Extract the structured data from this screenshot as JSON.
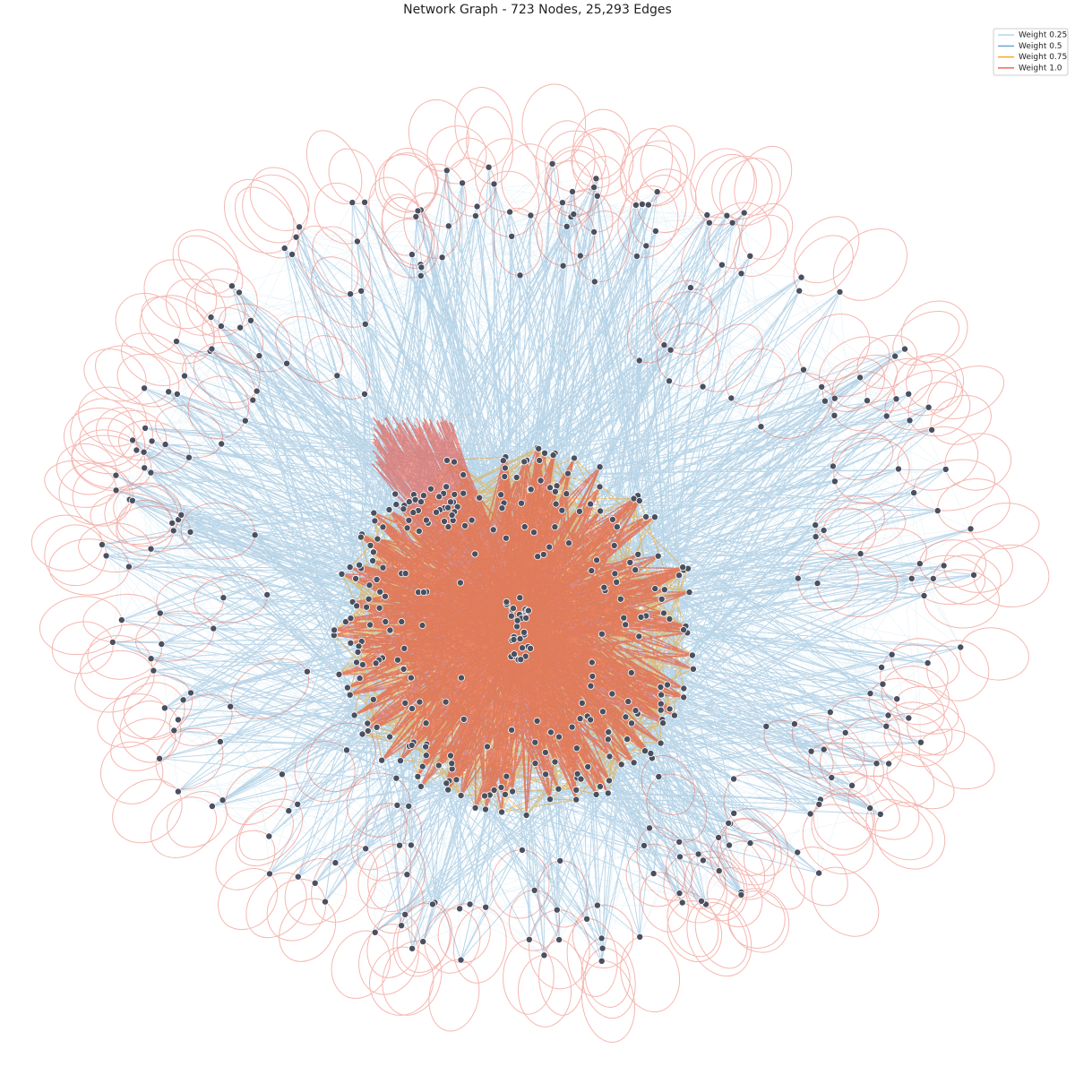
{
  "title": "Network Graph - 723 Nodes, 25,293 Edges",
  "legend": {
    "entries": [
      {
        "weight": 0.25,
        "label": "Weight 0.25",
        "color": "#a6cee3"
      },
      {
        "weight": 0.5,
        "label": "Weight 0.5",
        "color": "#4a90c2"
      },
      {
        "weight": 0.75,
        "label": "Weight 0.75",
        "color": "#f39c12"
      },
      {
        "weight": 1.0,
        "label": "Weight 1.0",
        "color": "#e74c3c"
      }
    ]
  }
}
